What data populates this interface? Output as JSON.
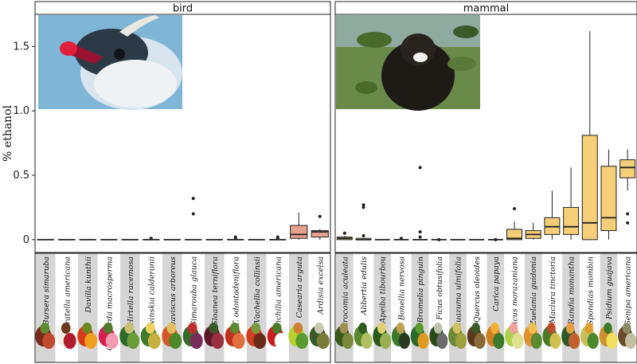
{
  "chart_data": {
    "type": "boxplot",
    "ylabel": "% ethanol",
    "ylim": [
      -0.1,
      1.75
    ],
    "yticks": [
      0,
      0.5,
      1.0,
      1.5
    ],
    "ytick_labels": [
      "0",
      "0.5",
      "1.0",
      "1.5"
    ],
    "facets": [
      {
        "name": "bird",
        "photo": "bird-photo",
        "boxes": [
          {
            "category": "Bursera simaruba",
            "q1": 0,
            "median": 0,
            "q3": 0,
            "lo": 0,
            "hi": 0,
            "outliers": []
          },
          {
            "category": "Curatella americana",
            "q1": 0,
            "median": 0,
            "q3": 0,
            "lo": 0,
            "hi": 0,
            "outliers": []
          },
          {
            "category": "Davilla kunthii",
            "q1": 0,
            "median": 0,
            "q3": 0,
            "lo": 0,
            "hi": 0,
            "outliers": []
          },
          {
            "category": "Guettarda macrosperma",
            "q1": 0,
            "median": 0,
            "q3": 0,
            "lo": 0,
            "hi": 0,
            "outliers": []
          },
          {
            "category": "Hirtella racemosa",
            "q1": 0,
            "median": 0,
            "q3": 0,
            "lo": 0,
            "hi": 0,
            "outliers": []
          },
          {
            "category": "Karwinskia calderonii",
            "q1": 0,
            "median": 0,
            "q3": 0,
            "lo": 0,
            "hi": 0,
            "outliers": [
              0.01
            ]
          },
          {
            "category": "Malvaviscus arboreus",
            "q1": 0,
            "median": 0,
            "q3": 0,
            "lo": 0,
            "hi": 0,
            "outliers": []
          },
          {
            "category": "Simarouba glauca",
            "q1": 0,
            "median": 0,
            "q3": 0,
            "lo": 0,
            "hi": 0,
            "outliers": [
              0.2,
              0.32
            ]
          },
          {
            "category": "Sloanea terniflora",
            "q1": 0,
            "median": 0,
            "q3": 0,
            "lo": 0,
            "hi": 0,
            "outliers": []
          },
          {
            "category": "T. odontadeniflora",
            "q1": 0,
            "median": 0,
            "q3": 0,
            "lo": 0,
            "hi": 0,
            "outliers": [
              0.01,
              0.02
            ]
          },
          {
            "category": "Vachellia collinsii",
            "q1": 0,
            "median": 0,
            "q3": 0,
            "lo": 0,
            "hi": 0,
            "outliers": []
          },
          {
            "category": "Trichilia americana",
            "q1": 0,
            "median": 0,
            "q3": 0,
            "lo": 0,
            "hi": 0,
            "outliers": [
              0.01,
              0.02
            ]
          },
          {
            "category": "Casearia arguta",
            "q1": 0.01,
            "median": 0.04,
            "q3": 0.11,
            "lo": 0,
            "hi": 0.21,
            "outliers": []
          },
          {
            "category": "Ardisia excelsa",
            "q1": 0.02,
            "median": 0.06,
            "q3": 0.07,
            "lo": 0,
            "hi": 0.08,
            "outliers": [
              0.18
            ]
          }
        ]
      },
      {
        "name": "mammal",
        "photo": "monkey-photo",
        "boxes": [
          {
            "category": "Acrocomia aculeata",
            "q1": 0,
            "median": 0.01,
            "q3": 0.02,
            "lo": 0,
            "hi": 0.03,
            "outliers": [
              0.05
            ]
          },
          {
            "category": "Alibertia edulis",
            "q1": 0,
            "median": 0,
            "q3": 0.01,
            "lo": 0,
            "hi": 0.01,
            "outliers": [
              0.03,
              0.25,
              0.27
            ]
          },
          {
            "category": "Apeiba tibourbou",
            "q1": 0,
            "median": 0,
            "q3": 0,
            "lo": 0,
            "hi": 0,
            "outliers": []
          },
          {
            "category": "Bonellia nervosa",
            "q1": 0,
            "median": 0,
            "q3": 0,
            "lo": 0,
            "hi": 0,
            "outliers": [
              0.01
            ]
          },
          {
            "category": "Bromelia pinguin",
            "q1": 0,
            "median": 0,
            "q3": 0,
            "lo": 0,
            "hi": 0,
            "outliers": [
              0.02,
              0.06,
              0.56
            ]
          },
          {
            "category": "Ficus obtusifolia",
            "q1": 0,
            "median": 0,
            "q3": 0,
            "lo": 0,
            "hi": 0,
            "outliers": [
              0.0
            ]
          },
          {
            "category": "Guazuma ulmifolia",
            "q1": 0,
            "median": 0,
            "q3": 0,
            "lo": 0,
            "hi": 0,
            "outliers": []
          },
          {
            "category": "Quercus oleoides",
            "q1": 0,
            "median": 0,
            "q3": 0,
            "lo": 0,
            "hi": 0,
            "outliers": []
          },
          {
            "category": "Carica papaya",
            "q1": 0,
            "median": 0,
            "q3": 0,
            "lo": 0,
            "hi": 0,
            "outliers": [
              0.0
            ]
          },
          {
            "category": "Ficus morazaniana",
            "q1": 0,
            "median": 0.01,
            "q3": 0.08,
            "lo": 0,
            "hi": 0.14,
            "outliers": [
              0.24
            ]
          },
          {
            "category": "Zuelania guidonia",
            "q1": 0.01,
            "median": 0.04,
            "q3": 0.07,
            "lo": 0,
            "hi": 0.13,
            "outliers": []
          },
          {
            "category": "Maclura tinctoria",
            "q1": 0.04,
            "median": 0.1,
            "q3": 0.17,
            "lo": 0,
            "hi": 0.38,
            "outliers": []
          },
          {
            "category": "Randia monantha",
            "q1": 0.04,
            "median": 0.1,
            "q3": 0.25,
            "lo": 0,
            "hi": 0.56,
            "outliers": []
          },
          {
            "category": "Spondias mombin",
            "q1": 0.0,
            "median": 0.13,
            "q3": 0.81,
            "lo": 0,
            "hi": 1.62,
            "outliers": []
          },
          {
            "category": "Psidium guajava",
            "q1": 0.07,
            "median": 0.17,
            "q3": 0.57,
            "lo": 0,
            "hi": 0.7,
            "outliers": []
          },
          {
            "category": "Genipa americana",
            "q1": 0.48,
            "median": 0.56,
            "q3": 0.62,
            "lo": 0.38,
            "hi": 0.7,
            "outliers": [
              0.13,
              0.2
            ]
          }
        ]
      }
    ],
    "colors": {
      "bird_box": "#e8a090",
      "mammal_box": "#f5ce78",
      "stroke": "#222222",
      "stripe": "#d6d6d6"
    },
    "grid": false
  }
}
